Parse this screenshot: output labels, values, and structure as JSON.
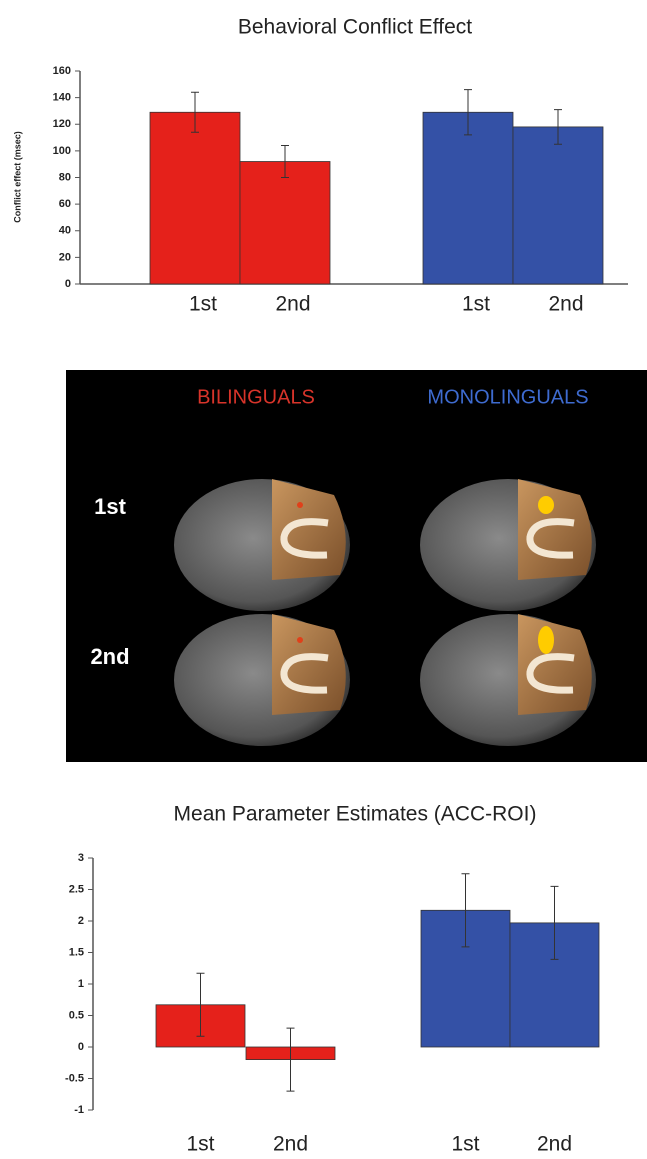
{
  "chart_data": [
    {
      "type": "bar",
      "title": "Behavioral Conflict Effect",
      "y_label": "Conflict effect (msec)",
      "categories": [
        "1st",
        "2nd",
        "1st",
        "2nd"
      ],
      "values": [
        129,
        92,
        129,
        118
      ],
      "errors": [
        15,
        12,
        17,
        13
      ],
      "colors": [
        "#e5211b",
        "#e5211b",
        "#3451a6",
        "#3451a6"
      ],
      "ylim": [
        0,
        160
      ],
      "yticks": [
        0,
        20,
        40,
        60,
        80,
        100,
        120,
        140,
        160
      ]
    },
    {
      "type": "bar",
      "title": "Mean Parameter Estimates (ACC-ROI)",
      "categories": [
        "1st",
        "2nd",
        "1st",
        "2nd"
      ],
      "values": [
        0.67,
        -0.2,
        2.17,
        1.97
      ],
      "errors": [
        0.5,
        0.5,
        0.58,
        0.58
      ],
      "colors": [
        "#e5211b",
        "#e5211b",
        "#3451a6",
        "#3451a6"
      ],
      "ylim": [
        -1,
        3
      ],
      "yticks": [
        -1,
        -0.5,
        0,
        0.5,
        1,
        1.5,
        2,
        2.5,
        3
      ]
    }
  ],
  "brain_panel": {
    "columns": [
      "BILINGUALS",
      "MONOLINGUALS"
    ],
    "rows": [
      "1st",
      "2nd"
    ]
  }
}
